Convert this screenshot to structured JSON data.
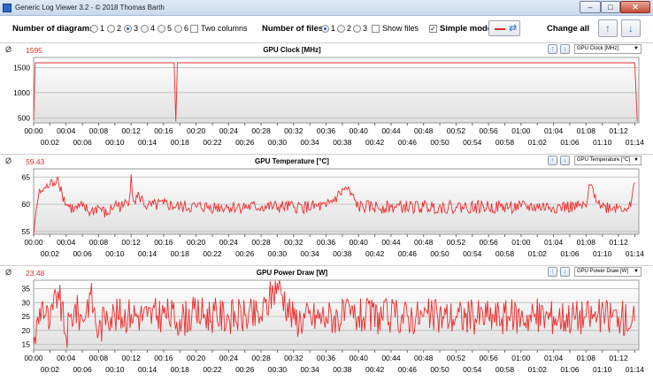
{
  "window": {
    "title": "Generic Log Viewer 3.2 - © 2018 Thomas Barth"
  },
  "controls": {
    "diagrams_label": "Number of diagrams",
    "diagram_options": [
      "1",
      "2",
      "3",
      "4",
      "5",
      "6"
    ],
    "diagrams_selected": "3",
    "two_columns_label": "Two columns",
    "files_label": "Number of files",
    "file_options": [
      "1",
      "2",
      "3"
    ],
    "files_selected": "1",
    "show_files_label": "Show files",
    "simple_mode_label": "Simple mode",
    "change_all_label": "Change all"
  },
  "panels": [
    {
      "title": "GPU Clock [MHz]",
      "current": "1595",
      "selector": "GPU Clock [MHz]"
    },
    {
      "title": "GPU Temperature [°C]",
      "current": "59.43",
      "selector": "GPU Temperature [°C]"
    },
    {
      "title": "GPU Power Draw [W]",
      "current": "23.48",
      "selector": "GPU Power Draw [W]"
    }
  ],
  "x_ticks_upper": [
    "00:00",
    "00:04",
    "00:08",
    "00:12",
    "00:16",
    "00:20",
    "00:24",
    "00:28",
    "00:32",
    "00:36",
    "00:40",
    "00:44",
    "00:48",
    "00:52",
    "00:56",
    "01:00",
    "01:04",
    "01:08",
    "01:12"
  ],
  "x_ticks_lower": [
    "00:02",
    "00:06",
    "00:10",
    "00:14",
    "00:18",
    "00:22",
    "00:26",
    "00:30",
    "00:34",
    "00:38",
    "00:42",
    "00:46",
    "00:50",
    "00:54",
    "00:58",
    "01:02",
    "01:06",
    "01:10",
    "01:14"
  ],
  "chart_data": [
    {
      "type": "line",
      "title": "GPU Clock [MHz]",
      "x_unit": "minutes",
      "xlim": [
        0,
        74.5
      ],
      "ylim": [
        400,
        1700
      ],
      "yticks": [
        500,
        1000,
        1500
      ],
      "series": [
        {
          "x": [
            0,
            0.2,
            0.4,
            17.3,
            17.5,
            17.7,
            74.0,
            74.3
          ],
          "values": [
            450,
            1595,
            1595,
            1595,
            430,
            1595,
            1595,
            430
          ]
        }
      ]
    },
    {
      "type": "line",
      "title": "GPU Temperature [°C]",
      "x_unit": "minutes",
      "xlim": [
        0,
        74.5
      ],
      "ylim": [
        54.5,
        66.5
      ],
      "yticks": [
        55,
        60,
        65
      ],
      "series": [
        {
          "x": [
            0,
            0.3,
            0.6,
            1.0,
            1.5,
            2.0,
            2.5,
            3.0,
            3.5,
            4.0,
            5.0,
            6.0,
            7.0,
            8.0,
            9.0,
            10.0,
            11.0,
            11.8,
            12.0,
            12.3,
            13.0,
            14.0,
            16.0,
            18.0,
            20.0,
            24.0,
            28.0,
            32.0,
            36.0,
            38.5,
            40.0,
            44.0,
            48.0,
            52.0,
            56.0,
            60.0,
            64.0,
            68.0,
            68.5,
            70.0,
            72.0,
            73.5,
            74.0
          ],
          "values": [
            54.5,
            59.0,
            61.5,
            62.5,
            63.0,
            63.5,
            64.0,
            65.0,
            62.0,
            60.0,
            59.0,
            59.5,
            58.5,
            59.5,
            58.0,
            60.0,
            59.5,
            61.0,
            65.5,
            60.5,
            61.5,
            59.5,
            60.0,
            59.5,
            59.5,
            59.5,
            59.5,
            59.5,
            59.5,
            63.0,
            59.5,
            59.5,
            59.5,
            59.5,
            59.5,
            59.5,
            59.5,
            59.5,
            63.5,
            59.5,
            59.5,
            59.5,
            64.0
          ]
        }
      ]
    },
    {
      "type": "line",
      "title": "GPU Power Draw [W]",
      "x_unit": "minutes",
      "xlim": [
        0,
        74.5
      ],
      "ylim": [
        13,
        38
      ],
      "yticks": [
        15,
        20,
        25,
        30,
        35
      ],
      "series": [
        {
          "x": [
            0,
            1,
            2,
            3,
            4,
            5,
            6,
            7,
            8,
            9,
            10,
            12,
            14,
            16,
            18,
            20,
            24,
            28,
            30,
            32,
            36,
            40,
            44,
            48,
            52,
            56,
            60,
            64,
            68,
            72,
            74
          ],
          "values": [
            15,
            30,
            22,
            34,
            18,
            28,
            24,
            33,
            19,
            27,
            25,
            26,
            25,
            26,
            24,
            26,
            25,
            25,
            37,
            24,
            25,
            25,
            25,
            25,
            25,
            25,
            25,
            25,
            25,
            25,
            23.48
          ]
        }
      ]
    }
  ]
}
